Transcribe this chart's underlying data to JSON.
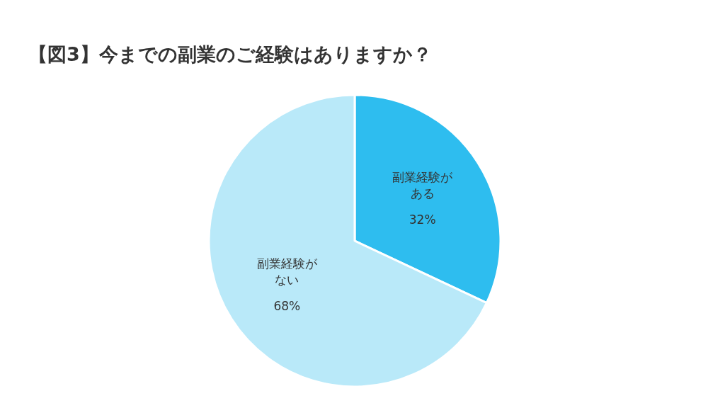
{
  "chart_data": {
    "type": "pie",
    "title": "【図3】今までの副業のご経験はありますか？",
    "categories": [
      "副業経験がある",
      "副業経験がない"
    ],
    "values": [
      32,
      68
    ],
    "value_labels": [
      "32%",
      "68%"
    ],
    "colors": [
      "#2ebdef",
      "#b9e9f9"
    ]
  }
}
